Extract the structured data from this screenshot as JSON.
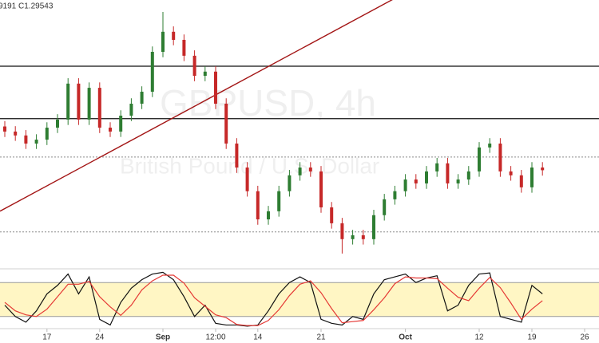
{
  "chart_data": {
    "type": "candlestick",
    "info_text": "9191 C1.29543",
    "watermark": "GBPUSD, 4h",
    "watermark_subtitle": "British Pound / U.S. Dollar",
    "categories": [
      null,
      null,
      null,
      null,
      "17",
      null,
      null,
      null,
      null,
      "24",
      null,
      null,
      null,
      null,
      null,
      "Sep",
      null,
      null,
      null,
      null,
      "12:00",
      null,
      null,
      null,
      "14",
      null,
      null,
      null,
      null,
      null,
      "21",
      null,
      null,
      null,
      null,
      null,
      null,
      null,
      "Oct",
      null,
      null,
      null,
      null,
      null,
      null,
      "12",
      null,
      null,
      null,
      null,
      "19",
      null,
      null,
      null,
      null,
      "26"
    ],
    "open": [
      1.31,
      1.3083,
      1.307,
      1.3043,
      1.3056,
      1.3096,
      1.3123,
      1.3243,
      1.3123,
      1.3229,
      1.3096,
      1.3083,
      1.3136,
      1.3176,
      1.3216,
      1.3349,
      1.3416,
      1.3389,
      1.3336,
      1.3269,
      1.3283,
      1.3176,
      1.3043,
      1.2963,
      1.2884,
      1.279,
      1.2817,
      1.2884,
      1.2937,
      1.2963,
      1.295,
      1.283,
      1.2777,
      1.2724,
      1.2737,
      1.2724,
      1.2804,
      1.2857,
      1.2884,
      1.2923,
      1.291,
      1.295,
      1.2977,
      1.291,
      1.2923,
      1.295,
      1.303,
      1.3043,
      1.295,
      1.2937,
      1.2897,
      1.2963,
      null,
      null,
      null,
      null
    ],
    "high": [
      1.3118,
      1.3101,
      1.3088,
      1.3074,
      1.3114,
      1.3141,
      1.3261,
      1.3261,
      1.3247,
      1.3247,
      1.3114,
      1.3154,
      1.3194,
      1.3234,
      1.3367,
      1.3482,
      1.3434,
      1.3407,
      1.3354,
      1.3301,
      1.3301,
      1.3194,
      1.3061,
      1.2981,
      1.2902,
      1.2835,
      1.2902,
      1.2955,
      1.2981,
      1.2981,
      1.2968,
      1.2848,
      1.2795,
      1.2755,
      1.2755,
      1.2822,
      1.2875,
      1.2902,
      1.2941,
      1.2941,
      1.2968,
      1.2995,
      1.2995,
      1.2941,
      1.2968,
      1.3048,
      1.3061,
      1.3061,
      1.2968,
      1.2955,
      1.2981,
      1.2981,
      null,
      null,
      null,
      null
    ],
    "low": [
      1.3065,
      1.3052,
      1.3025,
      1.3025,
      1.3038,
      1.3078,
      1.3105,
      1.3105,
      1.3105,
      1.3078,
      1.3065,
      1.3065,
      1.3118,
      1.3158,
      1.3198,
      1.3331,
      1.3371,
      1.3318,
      1.3251,
      1.3251,
      1.3158,
      1.3025,
      1.2945,
      1.2866,
      1.2772,
      1.2772,
      1.2799,
      1.2866,
      1.2919,
      1.2932,
      1.2812,
      1.2759,
      1.2676,
      1.2706,
      1.2706,
      1.2706,
      1.2786,
      1.2839,
      1.2866,
      1.2892,
      1.2892,
      1.2932,
      1.2892,
      1.2892,
      1.2905,
      1.2932,
      1.3012,
      1.2932,
      1.2919,
      1.2879,
      1.2879,
      1.2936,
      null,
      null,
      null,
      null
    ],
    "close": [
      1.3083,
      1.307,
      1.3043,
      1.3056,
      1.3096,
      1.3123,
      1.3243,
      1.3123,
      1.3229,
      1.3096,
      1.3083,
      1.3136,
      1.3176,
      1.3216,
      1.3349,
      1.3416,
      1.3389,
      1.3336,
      1.3269,
      1.3283,
      1.3176,
      1.3043,
      1.2963,
      1.2884,
      1.279,
      1.2817,
      1.2884,
      1.2937,
      1.2963,
      1.295,
      1.283,
      1.2777,
      1.2724,
      1.2737,
      1.2724,
      1.2804,
      1.2857,
      1.2884,
      1.2923,
      1.291,
      1.295,
      1.2977,
      1.291,
      1.2923,
      1.295,
      1.303,
      1.3043,
      1.295,
      1.2937,
      1.2897,
      1.2963,
      1.2954,
      null,
      null,
      null,
      null
    ],
    "up_color": "#2e7d32",
    "down_color": "#c62828",
    "ylim": [
      1.2625,
      1.3522
    ],
    "hlines": [
      {
        "value": 1.3301,
        "style": "solid",
        "color": "#111111"
      },
      {
        "value": 1.3126,
        "style": "solid",
        "color": "#111111"
      },
      {
        "value": 1.2998,
        "style": "dotted",
        "color": "#888888"
      },
      {
        "value": 1.2748,
        "style": "dotted",
        "color": "#888888"
      }
    ],
    "trendline": {
      "color": "#a31515",
      "index": [
        0,
        30
      ],
      "price": [
        1.2826,
        1.3395
      ]
    },
    "oscillator": {
      "type": "line",
      "ylim": [
        0,
        100
      ],
      "band": [
        20,
        80
      ],
      "band_color": "#fff6c4",
      "series": [
        {
          "color": "#111111",
          "values": [
            40,
            20,
            10,
            30,
            60,
            75,
            95,
            60,
            90,
            15,
            5,
            45,
            70,
            85,
            95,
            98,
            85,
            55,
            20,
            40,
            8,
            5,
            5,
            3,
            5,
            30,
            60,
            80,
            90,
            80,
            15,
            8,
            5,
            20,
            15,
            60,
            85,
            90,
            95,
            80,
            88,
            92,
            30,
            40,
            75,
            95,
            97,
            20,
            15,
            10,
            75,
            60,
            null,
            null,
            null,
            null
          ]
        },
        {
          "color": "#e53935",
          "values": [
            45,
            30,
            23,
            20,
            33,
            55,
            77,
            77,
            82,
            55,
            37,
            22,
            40,
            67,
            83,
            93,
            93,
            79,
            53,
            38,
            23,
            18,
            6,
            4,
            4,
            13,
            32,
            57,
            77,
            83,
            62,
            34,
            9,
            11,
            13,
            32,
            53,
            78,
            90,
            88,
            88,
            87,
            70,
            54,
            48,
            70,
            89,
            71,
            44,
            15,
            33,
            48,
            null,
            null,
            null,
            null
          ]
        }
      ]
    }
  }
}
